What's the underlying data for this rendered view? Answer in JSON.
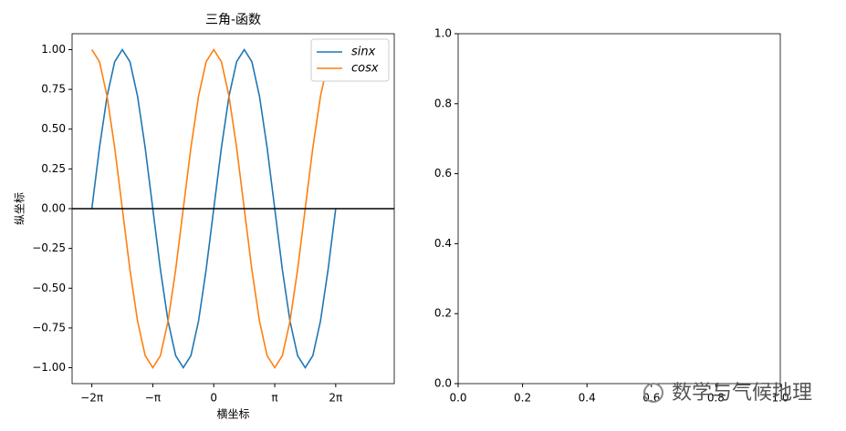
{
  "chart_data": [
    {
      "type": "line",
      "title": "三角-函数",
      "xlabel": "横坐标",
      "ylabel": "纵坐标",
      "x": [
        -6.283,
        -5.89,
        -5.498,
        -5.105,
        -4.712,
        -4.32,
        -3.927,
        -3.534,
        -3.142,
        -2.749,
        -2.356,
        -1.963,
        -1.571,
        -1.178,
        -0.785,
        -0.393,
        0,
        0.393,
        0.785,
        1.178,
        1.571,
        1.963,
        2.356,
        2.749,
        3.142,
        3.534,
        3.927,
        4.32,
        4.712,
        5.105,
        5.498,
        5.89,
        6.283
      ],
      "series": [
        {
          "name": "sinx",
          "color": "#1f77b4",
          "values": [
            0,
            0.383,
            0.707,
            0.924,
            1,
            0.924,
            0.707,
            0.383,
            0,
            -0.383,
            -0.707,
            -0.924,
            -1,
            -0.924,
            -0.707,
            -0.383,
            0,
            0.383,
            0.707,
            0.924,
            1,
            0.924,
            0.707,
            0.383,
            0,
            -0.383,
            -0.707,
            -0.924,
            -1,
            -0.924,
            -0.707,
            -0.383,
            0
          ]
        },
        {
          "name": "cosx",
          "color": "#ff7f0e",
          "values": [
            1,
            0.924,
            0.707,
            0.383,
            0,
            -0.383,
            -0.707,
            -0.924,
            -1,
            -0.924,
            -0.707,
            -0.383,
            0,
            0.383,
            0.707,
            0.924,
            1,
            0.924,
            0.707,
            0.383,
            0,
            -0.383,
            -0.707,
            -0.924,
            -1,
            -0.924,
            -0.707,
            -0.383,
            0,
            0.383,
            0.707,
            0.924,
            1
          ]
        }
      ],
      "axhline": {
        "y": 0,
        "color": "#000000"
      },
      "xlim": [
        -7.3,
        9.3
      ],
      "ylim": [
        -1.1,
        1.1
      ],
      "xticks": [
        {
          "value": -6.283,
          "label": "−2π"
        },
        {
          "value": -3.142,
          "label": "−π"
        },
        {
          "value": 0,
          "label": "0"
        },
        {
          "value": 3.142,
          "label": "π"
        },
        {
          "value": 6.283,
          "label": "2π"
        }
      ],
      "yticks": [
        {
          "value": -1,
          "label": "−1.00"
        },
        {
          "value": -0.75,
          "label": "−0.75"
        },
        {
          "value": -0.5,
          "label": "−0.50"
        },
        {
          "value": -0.25,
          "label": "−0.25"
        },
        {
          "value": 0,
          "label": "0.00"
        },
        {
          "value": 0.25,
          "label": "0.25"
        },
        {
          "value": 0.5,
          "label": "0.50"
        },
        {
          "value": 0.75,
          "label": "0.75"
        },
        {
          "value": 1,
          "label": "1.00"
        }
      ],
      "legend": "upper right"
    },
    {
      "type": "line",
      "series": [],
      "xlim": [
        0,
        1
      ],
      "ylim": [
        0,
        1
      ],
      "xticks": [
        {
          "value": 0,
          "label": "0.0"
        },
        {
          "value": 0.2,
          "label": "0.2"
        },
        {
          "value": 0.4,
          "label": "0.4"
        },
        {
          "value": 0.6,
          "label": "0.6"
        },
        {
          "value": 0.8,
          "label": "0.8"
        },
        {
          "value": 1,
          "label": "1.0"
        }
      ],
      "yticks": [
        {
          "value": 0,
          "label": "0.0"
        },
        {
          "value": 0.2,
          "label": "0.2"
        },
        {
          "value": 0.4,
          "label": "0.4"
        },
        {
          "value": 0.6,
          "label": "0.6"
        },
        {
          "value": 0.8,
          "label": "0.8"
        },
        {
          "value": 1,
          "label": "1.0"
        }
      ]
    }
  ],
  "watermark": "数学与气候地理"
}
